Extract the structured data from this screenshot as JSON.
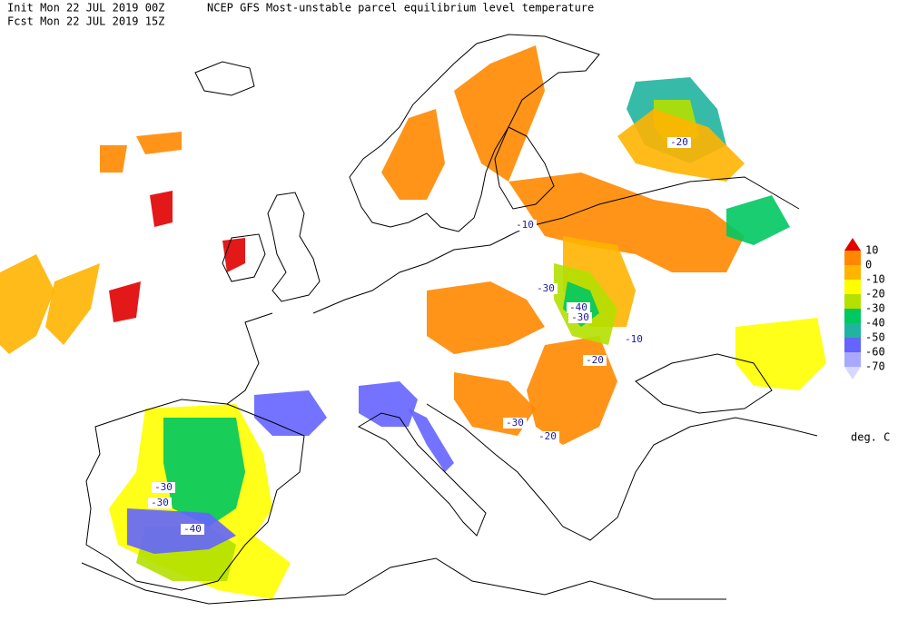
{
  "header": {
    "init": "Init  Mon 22 JUL 2019 00Z",
    "title": "NCEP GFS Most-unstable parcel equilibrium level temperature",
    "fcst": "Fcst Mon 22 JUL 2019 15Z"
  },
  "legend": {
    "levels": [
      10,
      0,
      -10,
      -20,
      -30,
      -40,
      -50,
      -60,
      -70
    ],
    "colors": [
      "#e00000",
      "#ff8800",
      "#ffb400",
      "#ffff00",
      "#b4e000",
      "#00c860",
      "#20b4a0",
      "#6464ff",
      "#a8a8ff",
      "#d8d8ff"
    ],
    "units": "deg. C"
  },
  "contour_labels": [
    -20,
    -10,
    -30,
    -40,
    -30,
    -10,
    -20,
    -30,
    -20,
    -30,
    -30,
    -40
  ]
}
